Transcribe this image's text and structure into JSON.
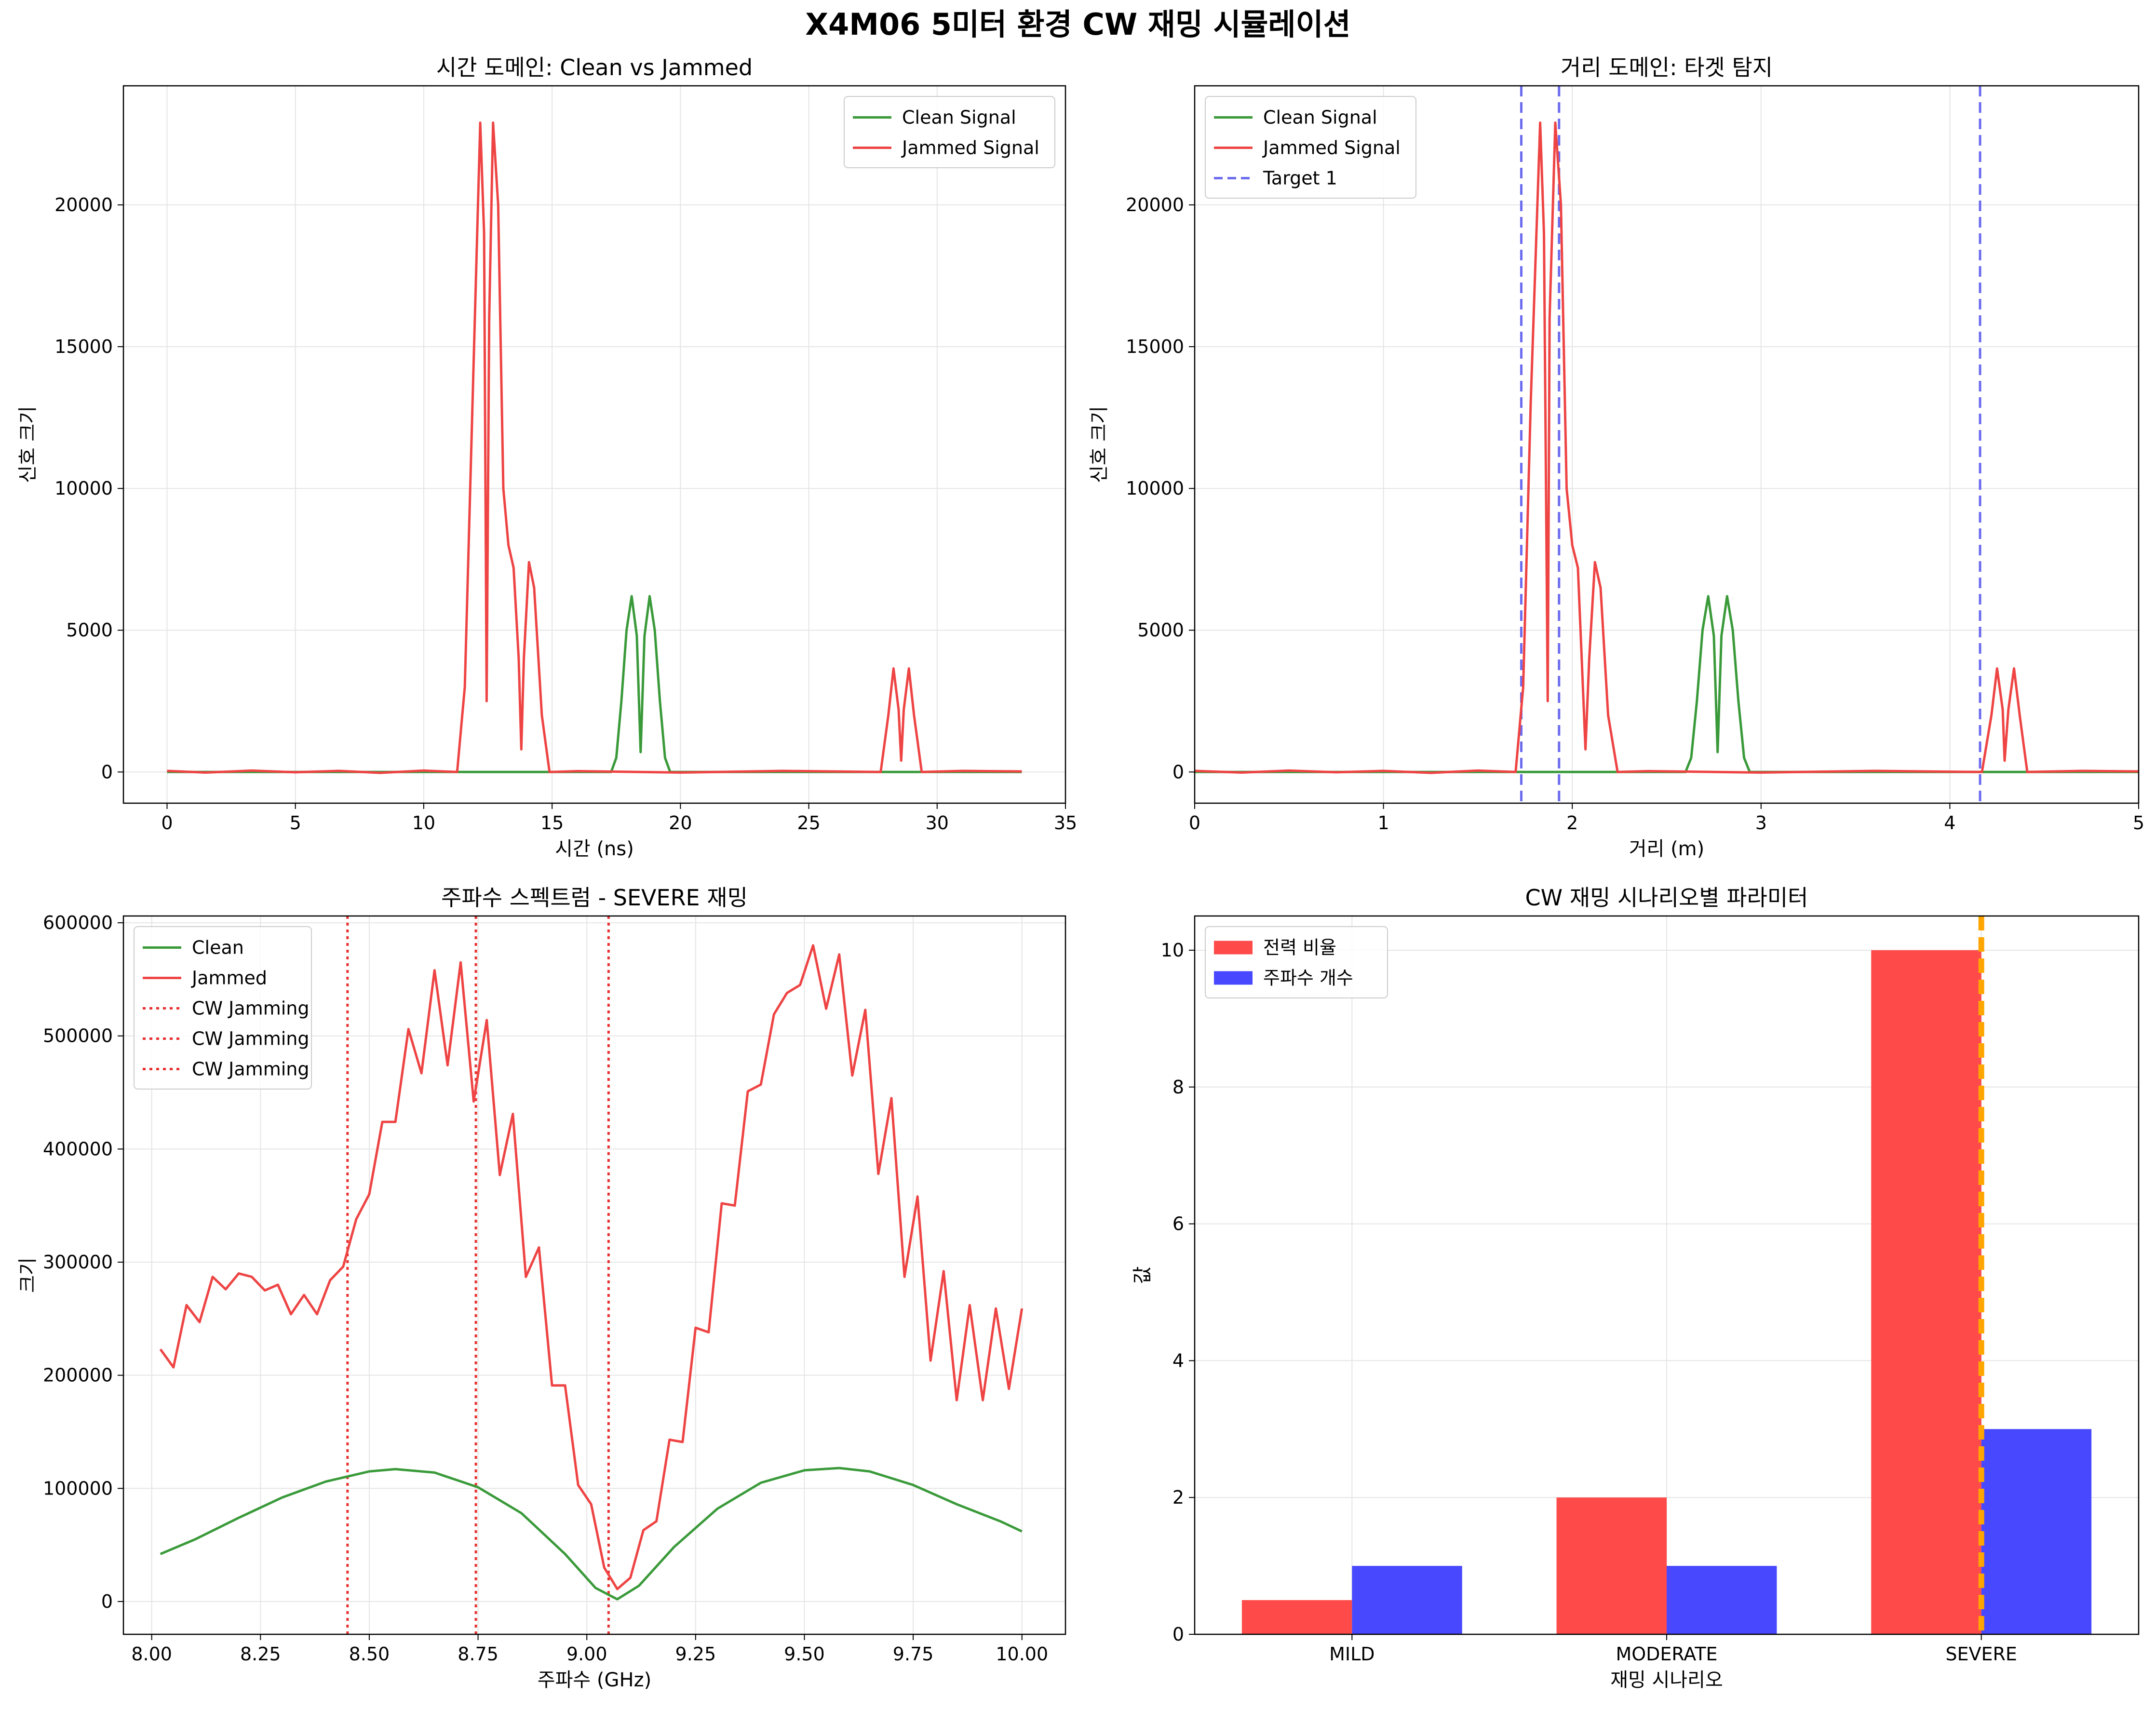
{
  "figure": {
    "suptitle": "X4M06 5미터 환경 CW 재밍 시뮬레이션"
  },
  "colors": {
    "clean": "#3a9a3a",
    "jammed": "#ee4444",
    "target": "#6b6bf0",
    "cw": "#e83030",
    "blue_bar": "#4848ff",
    "orange": "#ffa500",
    "grid": "#e5e5e5"
  },
  "chart_data": [
    {
      "id": "time",
      "type": "line",
      "title": "시간 도메인: Clean vs Jammed",
      "xlabel": "시간 (ns)",
      "ylabel": "신호 크기",
      "xlim": [
        -1.7,
        35
      ],
      "ylim": [
        -1100,
        24200
      ],
      "xticks": [
        0,
        5,
        10,
        15,
        20,
        25,
        30,
        35
      ],
      "yticks": [
        0,
        5000,
        10000,
        15000,
        20000
      ],
      "legend_position": "top-right",
      "series": [
        {
          "name": "Clean Signal",
          "color": "#3a9a3a",
          "points": [
            [
              0,
              0
            ],
            [
              17.3,
              0
            ],
            [
              17.5,
              500
            ],
            [
              17.7,
              2500
            ],
            [
              17.9,
              5000
            ],
            [
              18.1,
              6200
            ],
            [
              18.3,
              4800
            ],
            [
              18.45,
              700
            ],
            [
              18.6,
              4800
            ],
            [
              18.8,
              6200
            ],
            [
              19.0,
              5000
            ],
            [
              19.2,
              2500
            ],
            [
              19.4,
              500
            ],
            [
              19.6,
              0
            ],
            [
              33.3,
              0
            ]
          ]
        },
        {
          "name": "Jammed Signal",
          "color": "#ee4444",
          "points": [
            [
              0,
              40
            ],
            [
              1.5,
              -20
            ],
            [
              3.3,
              50
            ],
            [
              5,
              -10
            ],
            [
              6.7,
              40
            ],
            [
              8.3,
              -30
            ],
            [
              10,
              50
            ],
            [
              11.3,
              0
            ],
            [
              11.6,
              3000
            ],
            [
              11.9,
              13000
            ],
            [
              12.2,
              22900
            ],
            [
              12.35,
              19000
            ],
            [
              12.45,
              2500
            ],
            [
              12.55,
              16000
            ],
            [
              12.7,
              22900
            ],
            [
              12.9,
              20000
            ],
            [
              13.1,
              10000
            ],
            [
              13.3,
              8000
            ],
            [
              13.5,
              7200
            ],
            [
              13.7,
              4000
            ],
            [
              13.8,
              800
            ],
            [
              13.9,
              4000
            ],
            [
              14.1,
              7400
            ],
            [
              14.3,
              6500
            ],
            [
              14.6,
              2000
            ],
            [
              14.9,
              0
            ],
            [
              16,
              30
            ],
            [
              20,
              -20
            ],
            [
              24,
              40
            ],
            [
              27.8,
              0
            ],
            [
              28.1,
              2000
            ],
            [
              28.3,
              3650
            ],
            [
              28.5,
              2200
            ],
            [
              28.6,
              400
            ],
            [
              28.7,
              2200
            ],
            [
              28.9,
              3650
            ],
            [
              29.1,
              2000
            ],
            [
              29.4,
              0
            ],
            [
              31,
              40
            ],
            [
              33.3,
              20
            ]
          ]
        }
      ]
    },
    {
      "id": "range",
      "type": "line",
      "title": "거리 도메인: 타겟 탐지",
      "xlabel": "거리 (m)",
      "ylabel": "신호 크기",
      "xlim": [
        0,
        5
      ],
      "ylim": [
        -1100,
        24200
      ],
      "xticks": [
        0,
        1,
        2,
        3,
        4,
        5
      ],
      "yticks": [
        0,
        5000,
        10000,
        15000,
        20000
      ],
      "legend_position": "top-left",
      "target_lines": [
        1.73,
        1.93,
        4.16
      ],
      "series": [
        {
          "name": "Clean Signal",
          "color": "#3a9a3a",
          "points": [
            [
              0,
              0
            ],
            [
              2.6,
              0
            ],
            [
              2.63,
              500
            ],
            [
              2.66,
              2500
            ],
            [
              2.69,
              5000
            ],
            [
              2.72,
              6200
            ],
            [
              2.75,
              4800
            ],
            [
              2.77,
              700
            ],
            [
              2.79,
              4800
            ],
            [
              2.82,
              6200
            ],
            [
              2.85,
              5000
            ],
            [
              2.88,
              2500
            ],
            [
              2.91,
              500
            ],
            [
              2.94,
              0
            ],
            [
              5,
              0
            ]
          ]
        },
        {
          "name": "Jammed Signal",
          "color": "#ee4444",
          "points": [
            [
              0,
              40
            ],
            [
              0.25,
              -20
            ],
            [
              0.5,
              50
            ],
            [
              0.75,
              -10
            ],
            [
              1.0,
              40
            ],
            [
              1.25,
              -30
            ],
            [
              1.5,
              50
            ],
            [
              1.7,
              0
            ],
            [
              1.74,
              3000
            ],
            [
              1.78,
              13000
            ],
            [
              1.83,
              22900
            ],
            [
              1.85,
              19000
            ],
            [
              1.87,
              2500
            ],
            [
              1.88,
              16000
            ],
            [
              1.91,
              22900
            ],
            [
              1.94,
              20000
            ],
            [
              1.97,
              10000
            ],
            [
              2.0,
              8000
            ],
            [
              2.03,
              7200
            ],
            [
              2.05,
              4000
            ],
            [
              2.07,
              800
            ],
            [
              2.09,
              4000
            ],
            [
              2.12,
              7400
            ],
            [
              2.15,
              6500
            ],
            [
              2.19,
              2000
            ],
            [
              2.24,
              0
            ],
            [
              2.4,
              30
            ],
            [
              3.0,
              -20
            ],
            [
              3.6,
              40
            ],
            [
              4.17,
              0
            ],
            [
              4.22,
              2000
            ],
            [
              4.25,
              3650
            ],
            [
              4.28,
              2200
            ],
            [
              4.29,
              400
            ],
            [
              4.31,
              2200
            ],
            [
              4.34,
              3650
            ],
            [
              4.37,
              2000
            ],
            [
              4.41,
              0
            ],
            [
              4.7,
              40
            ],
            [
              5,
              20
            ]
          ]
        }
      ],
      "target_legend": "Target 1"
    },
    {
      "id": "spectrum",
      "type": "line",
      "title": "주파수 스펙트럼 - SEVERE 재밍",
      "xlabel": "주파수 (GHz)",
      "ylabel": "크기",
      "xlim": [
        7.935,
        10.1
      ],
      "ylim": [
        -29000,
        606000
      ],
      "xticks": [
        8.0,
        8.25,
        8.5,
        8.75,
        9.0,
        9.25,
        9.5,
        9.75,
        10.0
      ],
      "xtick_labels": [
        "8.00",
        "8.25",
        "8.50",
        "8.75",
        "9.00",
        "9.25",
        "9.50",
        "9.75",
        "10.00"
      ],
      "yticks": [
        0,
        100000,
        200000,
        300000,
        400000,
        500000,
        600000
      ],
      "legend_position": "top-left",
      "cw_lines": [
        8.45,
        8.745,
        9.05
      ],
      "cw_legend": [
        "CW Jamming",
        "CW Jamming",
        "CW Jamming"
      ],
      "series": [
        {
          "name": "Clean",
          "color": "#3a9a3a",
          "points": [
            [
              8.02,
              42000
            ],
            [
              8.1,
              55000
            ],
            [
              8.2,
              74000
            ],
            [
              8.3,
              92000
            ],
            [
              8.4,
              106000
            ],
            [
              8.5,
              115000
            ],
            [
              8.56,
              117000
            ],
            [
              8.65,
              114000
            ],
            [
              8.75,
              101000
            ],
            [
              8.85,
              78000
            ],
            [
              8.95,
              42000
            ],
            [
              9.02,
              12000
            ],
            [
              9.07,
              2000
            ],
            [
              9.12,
              14000
            ],
            [
              9.2,
              48000
            ],
            [
              9.3,
              82000
            ],
            [
              9.4,
              105000
            ],
            [
              9.5,
              116000
            ],
            [
              9.58,
              118000
            ],
            [
              9.65,
              115000
            ],
            [
              9.75,
              103000
            ],
            [
              9.85,
              86000
            ],
            [
              9.95,
              71000
            ],
            [
              10.0,
              62000
            ]
          ]
        },
        {
          "name": "Jammed",
          "color": "#ee4444",
          "points": [
            [
              8.02,
              223000
            ],
            [
              8.05,
              207000
            ],
            [
              8.08,
              262000
            ],
            [
              8.11,
              247000
            ],
            [
              8.14,
              287000
            ],
            [
              8.17,
              276000
            ],
            [
              8.2,
              290000
            ],
            [
              8.23,
              287000
            ],
            [
              8.26,
              275000
            ],
            [
              8.29,
              280000
            ],
            [
              8.32,
              254000
            ],
            [
              8.35,
              271000
            ],
            [
              8.38,
              254000
            ],
            [
              8.41,
              284000
            ],
            [
              8.44,
              296000
            ],
            [
              8.47,
              338000
            ],
            [
              8.5,
              360000
            ],
            [
              8.53,
              424000
            ],
            [
              8.56,
              424000
            ],
            [
              8.59,
              506000
            ],
            [
              8.62,
              467000
            ],
            [
              8.65,
              558000
            ],
            [
              8.68,
              474000
            ],
            [
              8.71,
              565000
            ],
            [
              8.74,
              442000
            ],
            [
              8.77,
              514000
            ],
            [
              8.8,
              377000
            ],
            [
              8.83,
              431000
            ],
            [
              8.86,
              287000
            ],
            [
              8.89,
              313000
            ],
            [
              8.92,
              191000
            ],
            [
              8.95,
              191000
            ],
            [
              8.98,
              103000
            ],
            [
              9.01,
              86000
            ],
            [
              9.04,
              30000
            ],
            [
              9.07,
              11000
            ],
            [
              9.1,
              21000
            ],
            [
              9.13,
              63000
            ],
            [
              9.16,
              71000
            ],
            [
              9.19,
              143000
            ],
            [
              9.22,
              141000
            ],
            [
              9.25,
              242000
            ],
            [
              9.28,
              238000
            ],
            [
              9.31,
              352000
            ],
            [
              9.34,
              350000
            ],
            [
              9.37,
              451000
            ],
            [
              9.4,
              457000
            ],
            [
              9.43,
              519000
            ],
            [
              9.46,
              538000
            ],
            [
              9.49,
              545000
            ],
            [
              9.52,
              580000
            ],
            [
              9.55,
              524000
            ],
            [
              9.58,
              572000
            ],
            [
              9.61,
              465000
            ],
            [
              9.64,
              523000
            ],
            [
              9.67,
              378000
            ],
            [
              9.7,
              445000
            ],
            [
              9.73,
              287000
            ],
            [
              9.76,
              358000
            ],
            [
              9.79,
              213000
            ],
            [
              9.82,
              292000
            ],
            [
              9.85,
              178000
            ],
            [
              9.88,
              262000
            ],
            [
              9.91,
              178000
            ],
            [
              9.94,
              259000
            ],
            [
              9.97,
              188000
            ],
            [
              10.0,
              259000
            ]
          ]
        }
      ]
    },
    {
      "id": "params",
      "type": "bar",
      "title": "CW 재밍 시나리오별 파라미터",
      "xlabel": "재밍 시나리오",
      "ylabel": "값",
      "categories": [
        "MILD",
        "MODERATE",
        "SEVERE"
      ],
      "ylim": [
        0,
        10.5
      ],
      "yticks": [
        0,
        2,
        4,
        6,
        8,
        10
      ],
      "legend_position": "top-left",
      "highlight_category": "SEVERE",
      "series": [
        {
          "name": "전력 비율",
          "color": "#ff4a4a",
          "values": [
            0.5,
            2,
            10
          ]
        },
        {
          "name": "주파수 개수",
          "color": "#4848ff",
          "values": [
            1,
            1,
            3
          ]
        }
      ]
    }
  ]
}
